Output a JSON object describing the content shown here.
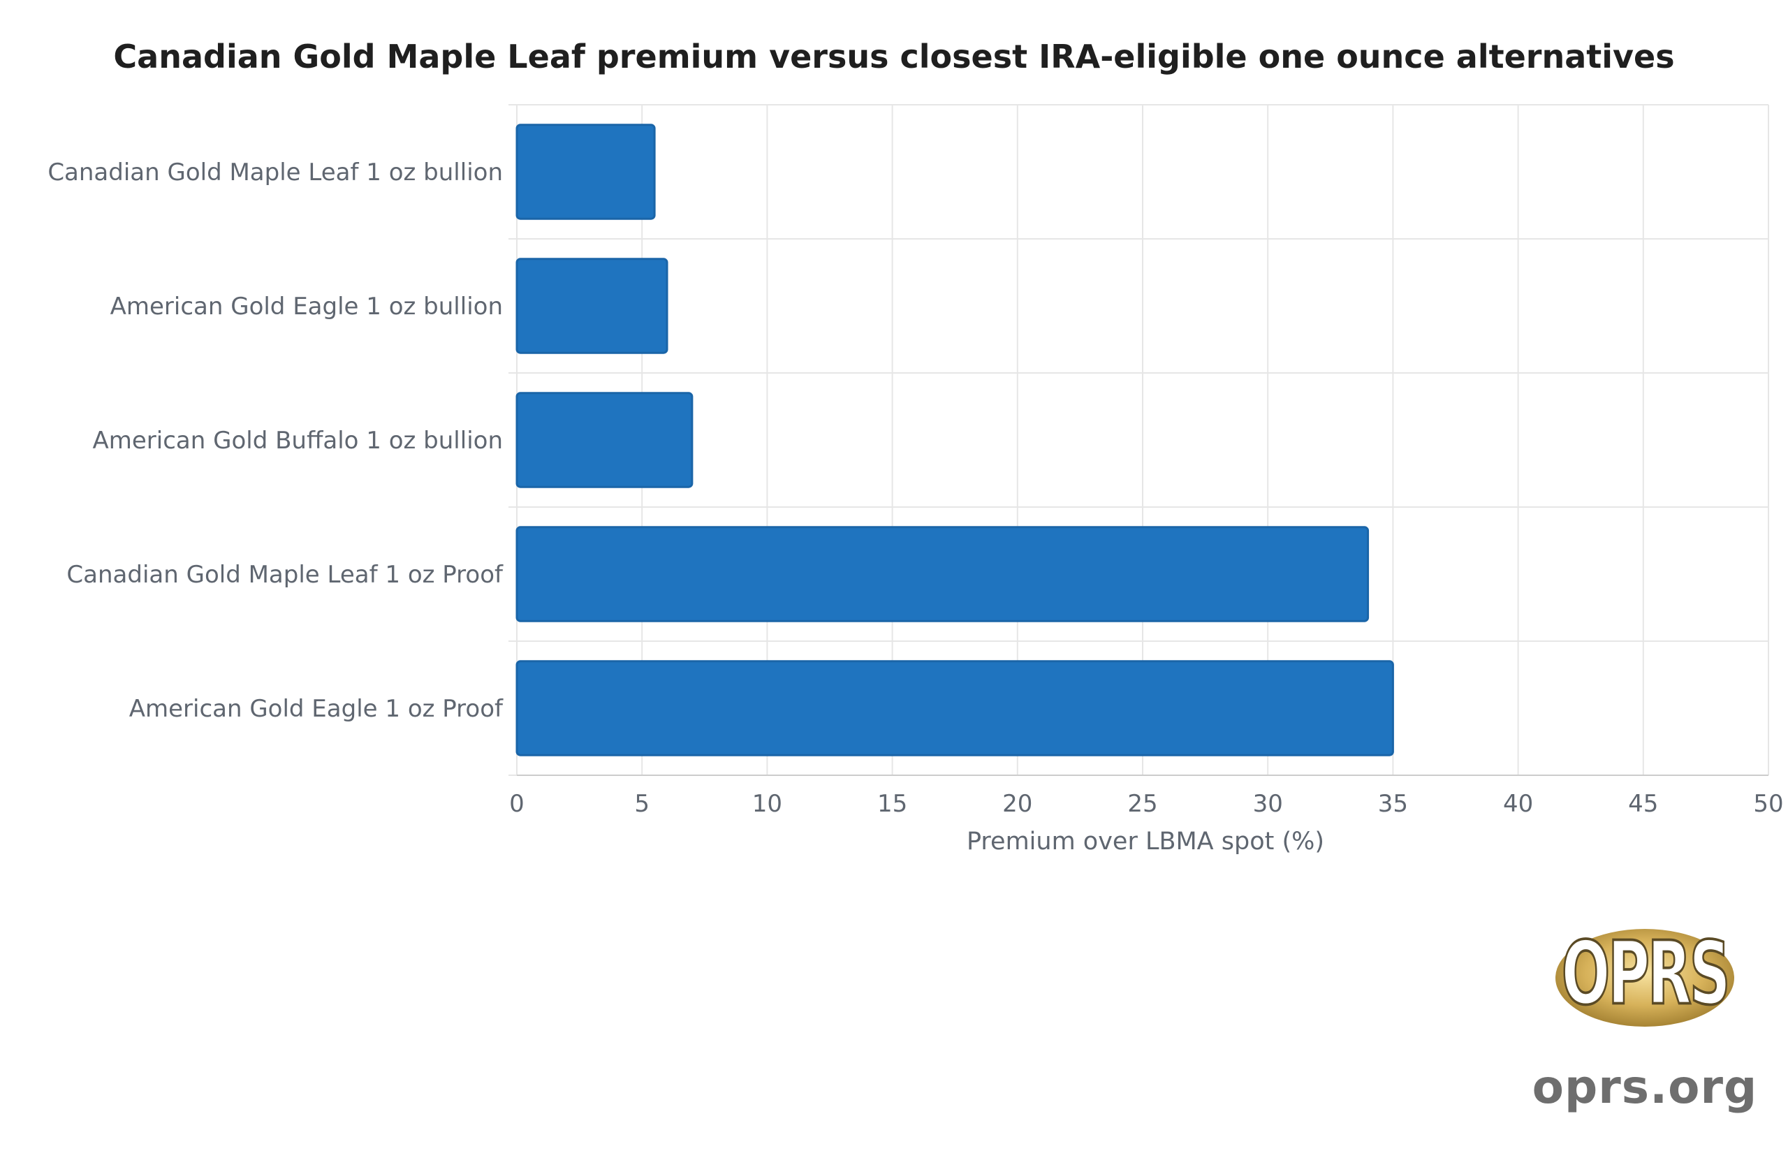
{
  "chart_data": {
    "type": "bar",
    "orientation": "horizontal",
    "title": "Canadian Gold Maple Leaf premium versus closest IRA-eligible one ounce alternatives",
    "categories": [
      "Canadian Gold Maple Leaf 1 oz bullion",
      "American Gold Eagle 1 oz bullion",
      "American Gold Buffalo 1 oz bullion",
      "Canadian Gold Maple Leaf 1 oz Proof",
      "American Gold Eagle 1 oz Proof"
    ],
    "values": [
      5.5,
      6,
      7,
      34,
      35
    ],
    "xlabel": "Premium over LBMA spot (%)",
    "ylabel": "",
    "xlim": [
      0,
      50
    ],
    "xticks": [
      0,
      5,
      10,
      15,
      20,
      25,
      30,
      35,
      40,
      45,
      50
    ],
    "grid": true,
    "bar_color": "#1f74bf"
  },
  "watermark": {
    "logo_text": "OPRS",
    "url": "oprs.org"
  }
}
